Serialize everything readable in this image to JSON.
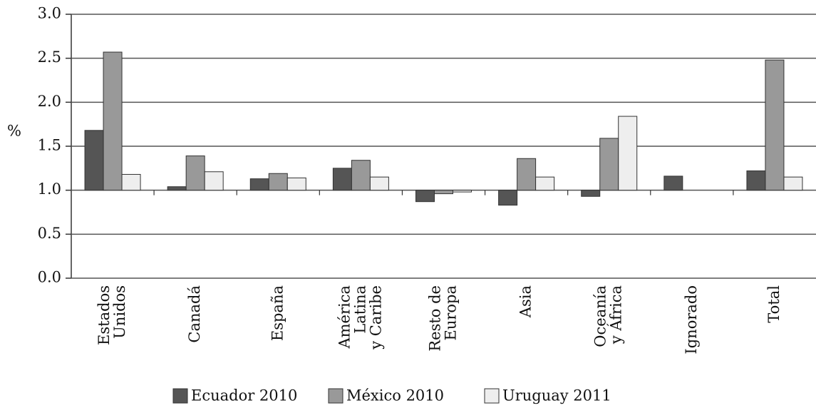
{
  "chart_data": {
    "type": "bar",
    "y_label": "%",
    "categories": [
      [
        "Estados",
        "Unidos"
      ],
      [
        "Canadá"
      ],
      [
        "España"
      ],
      [
        "América",
        "Latina",
        "y Caribe"
      ],
      [
        "Resto de",
        "Europa"
      ],
      [
        "Asia"
      ],
      [
        "Oceanía",
        "y África"
      ],
      [
        "Ignorado"
      ],
      [
        "Total"
      ]
    ],
    "series": [
      {
        "name": "Ecuador 2010",
        "color": "#555555",
        "values": [
          1.68,
          1.04,
          1.13,
          1.25,
          0.87,
          0.83,
          0.93,
          1.16,
          1.22
        ]
      },
      {
        "name": "México 2010",
        "color": "#999999",
        "values": [
          2.57,
          1.39,
          1.19,
          1.34,
          0.96,
          1.36,
          1.59,
          null,
          2.48
        ]
      },
      {
        "name": "Uruguay 2011",
        "color": "#eeeeee",
        "values": [
          1.18,
          1.21,
          1.14,
          1.15,
          0.98,
          1.15,
          1.84,
          null,
          1.15
        ]
      }
    ],
    "baseline": 1,
    "ylim": [
      0,
      3
    ],
    "yticks": [
      {
        "value": 0,
        "label": "0.0"
      },
      0.5,
      {
        "value": 1,
        "label": "1.0"
      },
      1.5,
      {
        "value": 2,
        "label": "2.0"
      },
      2.5,
      {
        "value": 3,
        "label": "3.0"
      }
    ],
    "grid": true
  }
}
